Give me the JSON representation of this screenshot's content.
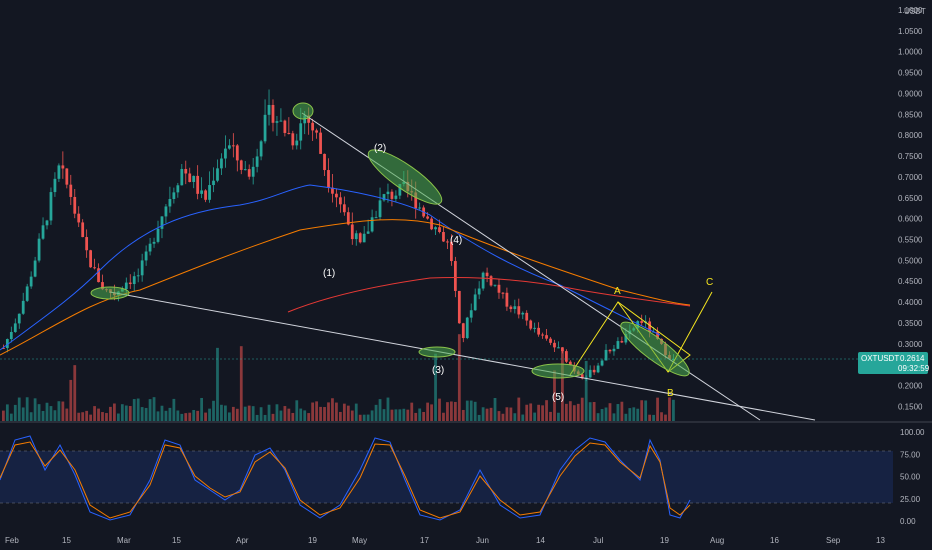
{
  "chart_data": {
    "type": "candlestick",
    "currency_label": "USDT",
    "price_axis": {
      "ylim": [
        0.115,
        1.1
      ],
      "ticks": [
        "1.1000",
        "1.0500",
        "1.0000",
        "0.9500",
        "0.9000",
        "0.8500",
        "0.8000",
        "0.7500",
        "0.7000",
        "0.6500",
        "0.6000",
        "0.5500",
        "0.5000",
        "0.4500",
        "0.4000",
        "0.3500",
        "0.3000",
        "0.2500",
        "0.2000",
        "0.1500"
      ]
    },
    "time_axis": {
      "ticks": [
        "Feb",
        "15",
        "Mar",
        "15",
        "Apr",
        "19",
        "May",
        "17",
        "Jun",
        "14",
        "Jul",
        "19",
        "Aug",
        "16",
        "Sep",
        "13"
      ]
    },
    "last_price": {
      "symbol": "OXTUSDT",
      "value": "0.2614",
      "countdown": "09:32:59",
      "color": "#26a69a"
    },
    "wave_labels": [
      "(1)",
      "(2)",
      "(3)",
      "(4)",
      "(5)"
    ],
    "abc_labels": [
      "A",
      "B",
      "C"
    ],
    "ohlc_close_path": [
      0.29,
      0.35,
      0.42,
      0.52,
      0.62,
      0.72,
      0.66,
      0.55,
      0.48,
      0.43,
      0.42,
      0.45,
      0.46,
      0.52,
      0.6,
      0.66,
      0.72,
      0.69,
      0.64,
      0.72,
      0.78,
      0.74,
      0.7,
      0.8,
      0.86,
      0.82,
      0.79,
      0.85,
      0.8,
      0.7,
      0.65,
      0.58,
      0.53,
      0.6,
      0.65,
      0.66,
      0.67,
      0.64,
      0.6,
      0.57,
      0.53,
      0.3,
      0.4,
      0.47,
      0.44,
      0.4,
      0.38,
      0.35,
      0.32,
      0.3,
      0.28,
      0.24,
      0.22,
      0.24,
      0.28,
      0.3,
      0.32,
      0.36,
      0.33,
      0.29,
      0.26
    ],
    "stoch_axis": {
      "ticks": [
        "100.00",
        "75.00",
        "50.00",
        "25.00",
        "0.00"
      ],
      "band": [
        20,
        80
      ]
    },
    "colors": {
      "up": "#26a69a",
      "down": "#ef5350",
      "background": "#131722",
      "ma_fast": "#2962ff",
      "ma_slow": "#f57c00",
      "ma_200": "#e53935",
      "highlight": "#4caf50",
      "trendline": "#d1d4dc",
      "abc": "#f5e51f"
    }
  }
}
